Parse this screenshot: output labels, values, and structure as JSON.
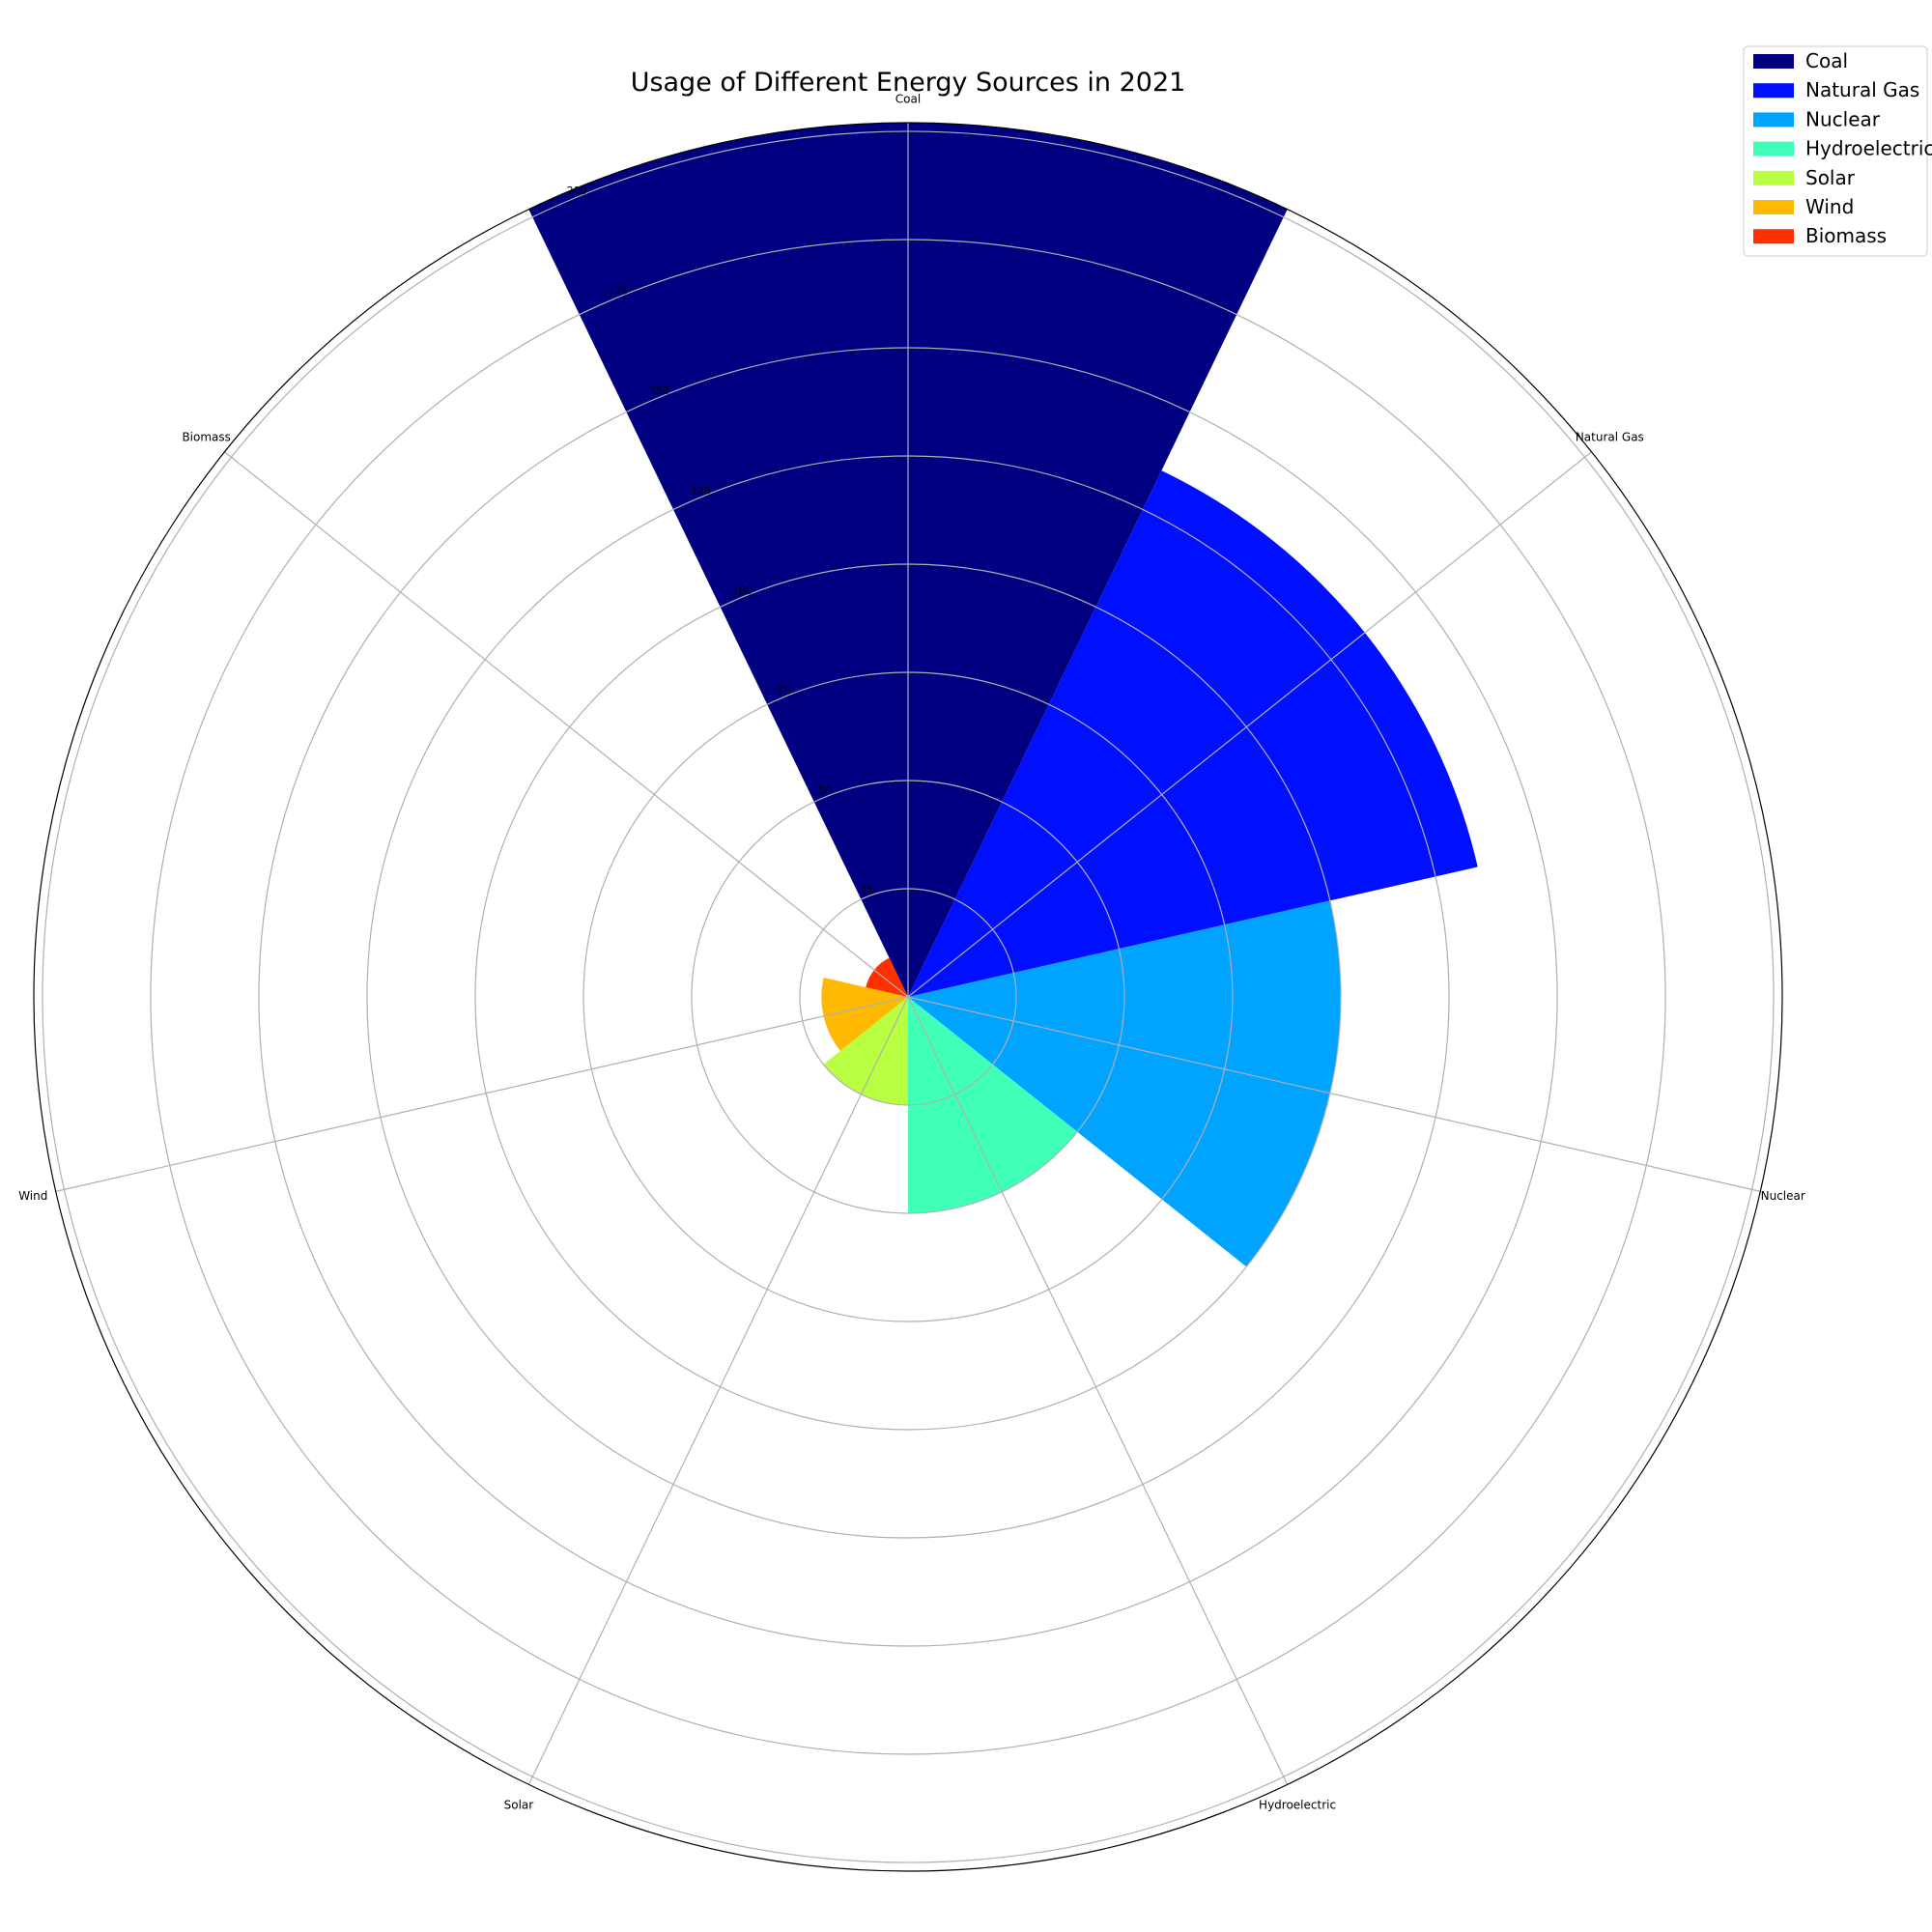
{
  "chart_data": {
    "type": "polar-bar",
    "title": "Usage of Different Energy Sources in 2021",
    "categories": [
      "Coal",
      "Natural Gas",
      "Nuclear",
      "Hydroelectric",
      "Solar",
      "Wind",
      "Biomass"
    ],
    "values": [
      202,
      135,
      100,
      50,
      25,
      20,
      10
    ],
    "colors": [
      "#000080",
      "#0010ff",
      "#00a4ff",
      "#40ffb7",
      "#b7ff40",
      "#ffb900",
      "#ff3000"
    ],
    "rticks": [
      25,
      50,
      75,
      100,
      125,
      150,
      175,
      200
    ],
    "rlim": [
      0,
      202
    ],
    "grid": true,
    "legend": {
      "placement": "top-right",
      "entries": [
        "Coal",
        "Natural Gas",
        "Nuclear",
        "Hydroelectric",
        "Solar",
        "Wind",
        "Biomass"
      ]
    }
  }
}
